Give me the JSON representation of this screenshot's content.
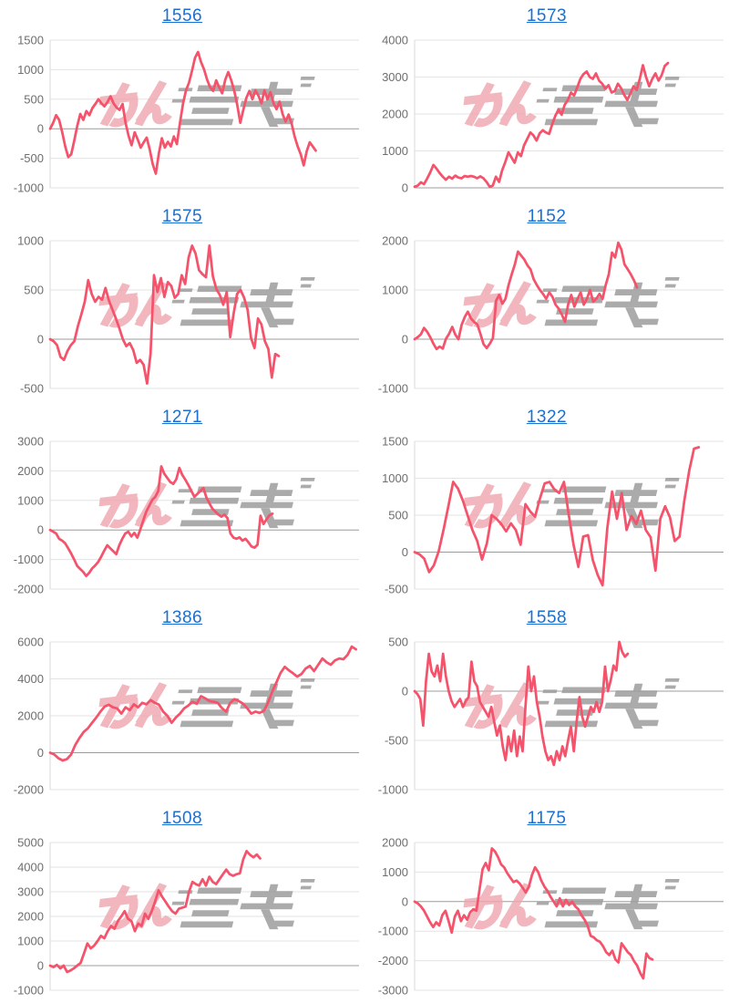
{
  "page": {
    "background": "#ffffff"
  },
  "style": {
    "line_color": "#f4536b",
    "grid_color": "#e3e3e3",
    "zero_line_color": "#9c9c9c",
    "axis_line_color": "#d9d9d9",
    "tick_label_color": "#6e6e6e",
    "link_color": "#1a6fd2",
    "watermark_pink": "#efa6ae",
    "watermark_gray": "#9d9d9d"
  },
  "watermark": {
    "name": "minrepo-logo-watermark",
    "pink_color": "#efa6ae",
    "gray_color": "#9d9d9d"
  },
  "chart_data": [
    {
      "type": "line",
      "title": "1556",
      "xlabel": "",
      "ylabel": "",
      "ylim": [
        -1000,
        1500
      ],
      "yticks": [
        -1000,
        -500,
        0,
        500,
        1000,
        1500
      ],
      "grid": true,
      "x_span_fraction": 0.86,
      "values": [
        0,
        100,
        230,
        150,
        -60,
        -300,
        -480,
        -430,
        -200,
        50,
        250,
        150,
        300,
        230,
        350,
        420,
        500,
        430,
        380,
        450,
        550,
        430,
        360,
        320,
        420,
        100,
        -120,
        -280,
        -60,
        -180,
        -320,
        -230,
        -150,
        -350,
        -600,
        -760,
        -420,
        -160,
        -320,
        -220,
        -300,
        -130,
        -260,
        100,
        420,
        650,
        780,
        980,
        1200,
        1300,
        1130,
        1000,
        830,
        700,
        640,
        820,
        700,
        600,
        830,
        960,
        820,
        640,
        400,
        100,
        320,
        520,
        640,
        500,
        650,
        560,
        430,
        650,
        500,
        620,
        430,
        330,
        460,
        250,
        120,
        240,
        90,
        -130,
        -300,
        -430,
        -620,
        -380,
        -230,
        -300,
        -370
      ]
    },
    {
      "type": "line",
      "title": "1573",
      "xlabel": "",
      "ylabel": "",
      "ylim": [
        0,
        4000
      ],
      "yticks": [
        0,
        1000,
        2000,
        3000,
        4000
      ],
      "grid": true,
      "x_span_fraction": 0.82,
      "values": [
        30,
        60,
        150,
        100,
        250,
        420,
        620,
        520,
        400,
        300,
        220,
        300,
        250,
        330,
        280,
        260,
        320,
        300,
        320,
        300,
        260,
        310,
        260,
        160,
        30,
        60,
        300,
        160,
        480,
        700,
        960,
        820,
        680,
        960,
        860,
        1150,
        1320,
        1500,
        1420,
        1280,
        1480,
        1560,
        1500,
        1460,
        1720,
        1950,
        2120,
        1980,
        2250,
        2380,
        2580,
        2500,
        2720,
        2950,
        3080,
        3150,
        3000,
        2950,
        3100,
        2900,
        2820,
        2680,
        2780,
        2580,
        2620,
        2820,
        2700,
        2520,
        2380,
        2550,
        2750,
        2650,
        2950,
        3320,
        3000,
        2750,
        2950,
        3100,
        2900,
        3050,
        3300,
        3380
      ]
    },
    {
      "type": "line",
      "title": "1575",
      "xlabel": "",
      "ylabel": "",
      "ylim": [
        -500,
        1000
      ],
      "yticks": [
        -500,
        0,
        500,
        1000
      ],
      "grid": true,
      "x_span_fraction": 0.74,
      "values": [
        0,
        -20,
        -60,
        -180,
        -210,
        -120,
        -60,
        -20,
        130,
        250,
        380,
        600,
        460,
        380,
        430,
        400,
        520,
        390,
        300,
        210,
        110,
        0,
        -70,
        -40,
        -110,
        -240,
        -210,
        -260,
        -450,
        -150,
        650,
        480,
        620,
        430,
        580,
        540,
        420,
        460,
        650,
        560,
        830,
        950,
        870,
        700,
        660,
        630,
        950,
        640,
        510,
        450,
        350,
        480,
        20,
        260,
        460,
        500,
        420,
        300,
        10,
        -90,
        210,
        150,
        -20,
        -100,
        -390,
        -150,
        -170
      ]
    },
    {
      "type": "line",
      "title": "1152",
      "xlabel": "",
      "ylabel": "",
      "ylim": [
        -1000,
        2000
      ],
      "yticks": [
        -1000,
        0,
        1000,
        2000
      ],
      "grid": true,
      "x_span_fraction": 0.72,
      "values": [
        0,
        40,
        100,
        230,
        150,
        40,
        -90,
        -200,
        -150,
        -190,
        10,
        110,
        250,
        90,
        0,
        290,
        450,
        560,
        420,
        350,
        300,
        110,
        -100,
        -180,
        -90,
        20,
        780,
        900,
        720,
        820,
        1100,
        1320,
        1520,
        1780,
        1700,
        1620,
        1500,
        1420,
        1220,
        1100,
        1000,
        920,
        820,
        950,
        860,
        700,
        620,
        500,
        350,
        700,
        900,
        660,
        820,
        950,
        700,
        820,
        1000,
        760,
        820,
        920,
        820,
        1100,
        1320,
        1760,
        1660,
        1960,
        1820,
        1520,
        1420,
        1320,
        1200,
        1050
      ]
    },
    {
      "type": "line",
      "title": "1271",
      "xlabel": "",
      "ylabel": "",
      "ylim": [
        -2000,
        3000
      ],
      "yticks": [
        -2000,
        -1000,
        0,
        1000,
        2000,
        3000
      ],
      "grid": true,
      "x_span_fraction": 0.72,
      "values": [
        0,
        -60,
        -120,
        -300,
        -360,
        -450,
        -620,
        -800,
        -1000,
        -1220,
        -1320,
        -1420,
        -1560,
        -1450,
        -1300,
        -1200,
        -1080,
        -900,
        -700,
        -520,
        -620,
        -720,
        -820,
        -520,
        -300,
        -120,
        -60,
        -220,
        -100,
        -260,
        20,
        320,
        620,
        820,
        1020,
        1120,
        1320,
        2150,
        1900,
        1760,
        1620,
        1560,
        1720,
        2100,
        1860,
        1700,
        1520,
        1320,
        1120,
        1220,
        1320,
        1420,
        1100,
        900,
        720,
        620,
        520,
        450,
        520,
        400,
        -120,
        -260,
        -300,
        -250,
        -360,
        -300,
        -420,
        -560,
        -600,
        -500,
        480,
        200,
        360,
        500,
        550
      ]
    },
    {
      "type": "line",
      "title": "1322",
      "xlabel": "",
      "ylabel": "",
      "ylim": [
        -500,
        1500
      ],
      "yticks": [
        -500,
        0,
        500,
        1000,
        1500
      ],
      "grid": true,
      "x_span_fraction": 0.92,
      "values": [
        0,
        -30,
        -90,
        -270,
        -180,
        10,
        300,
        620,
        950,
        860,
        700,
        500,
        300,
        150,
        -100,
        120,
        500,
        450,
        380,
        280,
        390,
        300,
        100,
        650,
        550,
        480,
        720,
        930,
        950,
        850,
        800,
        950,
        500,
        100,
        -200,
        210,
        230,
        -110,
        -310,
        -450,
        320,
        820,
        450,
        800,
        300,
        490,
        380,
        560,
        300,
        200,
        -250,
        450,
        620,
        470,
        150,
        210,
        700,
        1100,
        1400,
        1420
      ]
    },
    {
      "type": "line",
      "title": "1386",
      "xlabel": "",
      "ylabel": "",
      "ylim": [
        -2000,
        6000
      ],
      "yticks": [
        -2000,
        0,
        2000,
        4000,
        6000
      ],
      "grid": true,
      "x_span_fraction": 0.99,
      "values": [
        0,
        -100,
        -300,
        -420,
        -350,
        -100,
        420,
        800,
        1120,
        1320,
        1620,
        1900,
        2220,
        2500,
        2600,
        2460,
        2400,
        2120,
        2460,
        2300,
        2620,
        2460,
        2700,
        2620,
        2850,
        2700,
        2600,
        2220,
        2000,
        1620,
        1900,
        2120,
        2400,
        2560,
        2760,
        2650,
        3060,
        2950,
        2800,
        2760,
        2700,
        2420,
        2220,
        2700,
        2900,
        2800,
        2660,
        2420,
        2120,
        2220,
        2160,
        2260,
        2700,
        3300,
        3800,
        4320,
        4650,
        4460,
        4300,
        4120,
        4260,
        4560,
        4700,
        4420,
        4760,
        5100,
        4900,
        4760,
        5000,
        5100,
        5060,
        5300,
        5750,
        5600
      ]
    },
    {
      "type": "line",
      "title": "1558",
      "xlabel": "",
      "ylabel": "",
      "ylim": [
        -1000,
        500
      ],
      "yticks": [
        -1000,
        -500,
        0,
        500
      ],
      "grid": true,
      "x_span_fraction": 0.69,
      "values": [
        0,
        -30,
        -80,
        -350,
        100,
        380,
        200,
        150,
        260,
        100,
        380,
        150,
        0,
        -100,
        -160,
        -120,
        -80,
        -160,
        -100,
        -60,
        300,
        100,
        50,
        -110,
        -160,
        -210,
        -260,
        -160,
        -310,
        -450,
        -350,
        -560,
        -700,
        -460,
        -610,
        -400,
        -660,
        -460,
        -610,
        -160,
        250,
        0,
        150,
        -110,
        -260,
        -460,
        -610,
        -700,
        -660,
        -750,
        -610,
        -700,
        -560,
        -660,
        -500,
        -360,
        -610,
        -310,
        -60,
        -260,
        -360,
        -260,
        -160,
        -210,
        -110,
        -210,
        -110,
        250,
        0,
        110,
        260,
        210,
        500,
        400,
        350,
        380
      ]
    },
    {
      "type": "line",
      "title": "1508",
      "xlabel": "",
      "ylabel": "",
      "ylim": [
        -1000,
        5000
      ],
      "yticks": [
        -1000,
        0,
        1000,
        2000,
        3000,
        4000,
        5000
      ],
      "grid": true,
      "x_span_fraction": 0.68,
      "values": [
        0,
        -60,
        30,
        -110,
        0,
        -260,
        -200,
        -110,
        0,
        110,
        500,
        900,
        700,
        810,
        1000,
        1210,
        1110,
        1400,
        1610,
        1500,
        1810,
        2000,
        2210,
        1900,
        1810,
        1400,
        1710,
        1610,
        2110,
        1900,
        2210,
        2610,
        3060,
        2810,
        2610,
        2400,
        2210,
        2110,
        2310,
        2350,
        2400,
        3000,
        3400,
        3310,
        3250,
        3510,
        3250,
        3610,
        3400,
        3310,
        3510,
        3710,
        3900,
        3710,
        3650,
        3710,
        3750,
        4310,
        4650,
        4500,
        4400,
        4510,
        4350
      ]
    },
    {
      "type": "line",
      "title": "1175",
      "xlabel": "",
      "ylabel": "",
      "ylim": [
        -3000,
        2000
      ],
      "yticks": [
        -3000,
        -2000,
        -1000,
        0,
        1000,
        2000
      ],
      "grid": true,
      "x_span_fraction": 0.77,
      "values": [
        0,
        -60,
        -160,
        -300,
        -500,
        -700,
        -860,
        -700,
        -810,
        -450,
        -310,
        -660,
        -1050,
        -510,
        -310,
        -660,
        -460,
        -610,
        -360,
        -260,
        -310,
        400,
        1100,
        1310,
        1060,
        1800,
        1700,
        1510,
        1260,
        1160,
        960,
        810,
        660,
        710,
        610,
        460,
        310,
        510,
        900,
        1160,
        1000,
        710,
        510,
        360,
        160,
        0,
        -160,
        110,
        -160,
        60,
        -110,
        0,
        -160,
        -260,
        -460,
        -610,
        -810,
        -1160,
        -1210,
        -1310,
        -1360,
        -1510,
        -1710,
        -1810,
        -1660,
        -1960,
        -2060,
        -1410,
        -1560,
        -1710,
        -1810,
        -2010,
        -2160,
        -2410,
        -2600,
        -1760,
        -1910,
        -1960
      ]
    }
  ]
}
